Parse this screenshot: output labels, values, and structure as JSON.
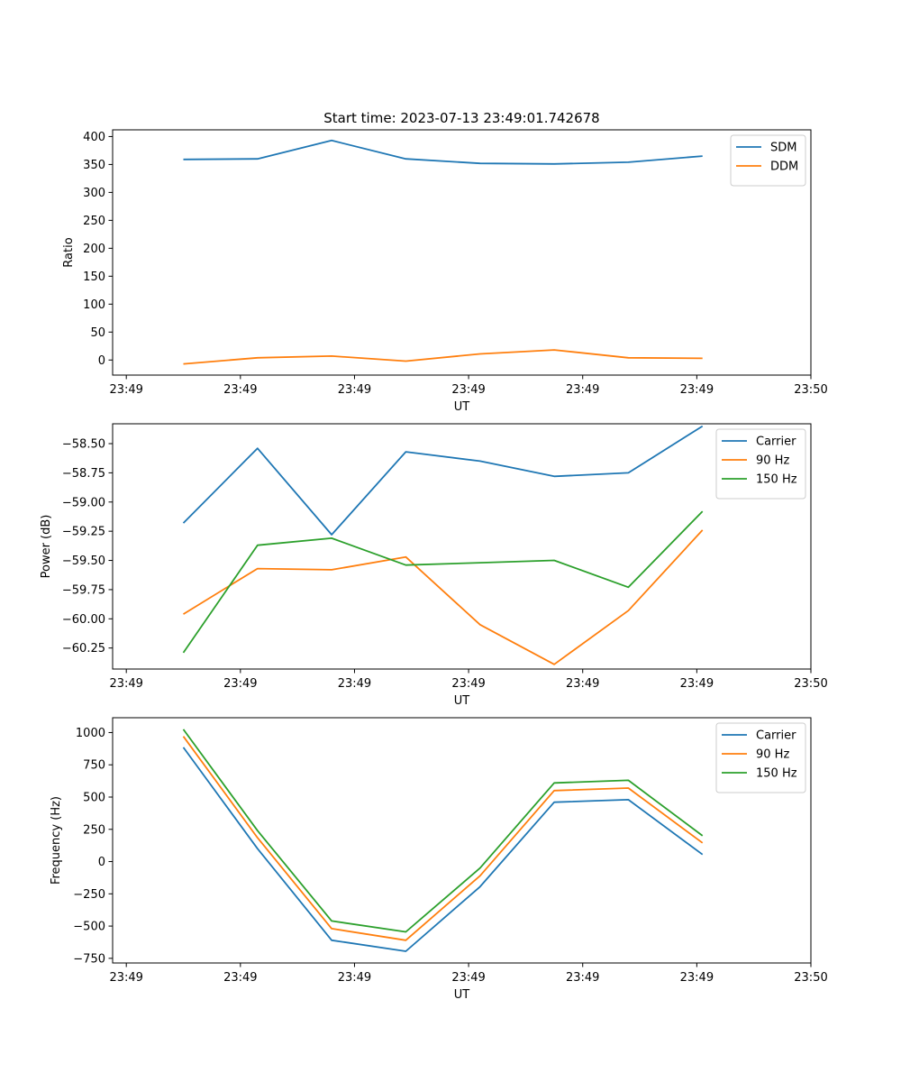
{
  "figure_title": "Start time: 2023-07-13 23:49:01.742678",
  "chart_data": [
    {
      "type": "line",
      "title": "Start time: 2023-07-13 23:49:01.742678",
      "xlabel": "UT",
      "ylabel": "Ratio",
      "x_ticks": [
        "23:49",
        "23:49",
        "23:49",
        "23:49",
        "23:49",
        "23:49",
        "23:50"
      ],
      "x_tick_values": [
        0,
        1,
        2,
        3,
        4,
        5,
        6
      ],
      "xlim": [
        -0.12,
        6.0
      ],
      "x": [
        0.5,
        1.15,
        1.8,
        2.45,
        3.1,
        3.75,
        4.4,
        5.05
      ],
      "y_ticks": [
        0,
        50,
        100,
        150,
        200,
        250,
        300,
        350,
        400
      ],
      "ylim": [
        -27,
        412
      ],
      "legend_position": "upper right",
      "series": [
        {
          "name": "SDM",
          "color": "#1f77b4",
          "values": [
            359,
            360,
            393,
            360,
            352,
            351,
            354,
            365
          ]
        },
        {
          "name": "DDM",
          "color": "#ff7f0e",
          "values": [
            -7,
            4,
            7,
            -2,
            11,
            18,
            4,
            3
          ]
        }
      ]
    },
    {
      "type": "line",
      "title": "",
      "xlabel": "UT",
      "ylabel": "Power (dB)",
      "x_ticks": [
        "23:49",
        "23:49",
        "23:49",
        "23:49",
        "23:49",
        "23:49",
        "23:50"
      ],
      "x_tick_values": [
        0,
        1,
        2,
        3,
        4,
        5,
        6
      ],
      "xlim": [
        -0.12,
        6.0
      ],
      "x": [
        0.5,
        1.15,
        1.8,
        2.45,
        3.1,
        3.75,
        4.4,
        5.05
      ],
      "y_ticks": [
        -60.25,
        -60.0,
        -59.75,
        -59.5,
        -59.25,
        -59.0,
        -58.75,
        -58.5
      ],
      "y_tick_labels": [
        "−60.25",
        "−60.00",
        "−59.75",
        "−59.50",
        "−59.25",
        "−59.00",
        "−58.75",
        "−58.50"
      ],
      "ylim": [
        -60.43,
        -58.33
      ],
      "legend_position": "upper right",
      "series": [
        {
          "name": "Carrier",
          "color": "#1f77b4",
          "values": [
            -59.18,
            -58.54,
            -59.28,
            -58.57,
            -58.65,
            -58.78,
            -58.75,
            -58.35
          ]
        },
        {
          "name": "90 Hz",
          "color": "#ff7f0e",
          "values": [
            -59.96,
            -59.57,
            -59.58,
            -59.47,
            -60.05,
            -60.39,
            -59.93,
            -59.24
          ]
        },
        {
          "name": "150 Hz",
          "color": "#2ca02c",
          "values": [
            -60.29,
            -59.37,
            -59.31,
            -59.54,
            -59.52,
            -59.5,
            -59.73,
            -59.08
          ]
        }
      ]
    },
    {
      "type": "line",
      "title": "",
      "xlabel": "UT",
      "ylabel": "Frequency (Hz)",
      "x_ticks": [
        "23:49",
        "23:49",
        "23:49",
        "23:49",
        "23:49",
        "23:49",
        "23:50"
      ],
      "x_tick_values": [
        0,
        1,
        2,
        3,
        4,
        5,
        6
      ],
      "xlim": [
        -0.12,
        6.0
      ],
      "x": [
        0.5,
        1.15,
        1.8,
        2.45,
        3.1,
        3.75,
        4.4,
        5.05
      ],
      "y_ticks": [
        -750,
        -500,
        -250,
        0,
        250,
        500,
        750,
        1000
      ],
      "y_tick_labels": [
        "−750",
        "−500",
        "−250",
        "0",
        "250",
        "500",
        "750",
        "1000"
      ],
      "ylim": [
        -786,
        1115
      ],
      "legend_position": "upper right",
      "series": [
        {
          "name": "Carrier",
          "color": "#1f77b4",
          "values": [
            885,
            100,
            -610,
            -695,
            -195,
            460,
            480,
            55
          ]
        },
        {
          "name": "90 Hz",
          "color": "#ff7f0e",
          "values": [
            970,
            185,
            -520,
            -610,
            -110,
            550,
            570,
            145
          ]
        },
        {
          "name": "150 Hz",
          "color": "#2ca02c",
          "values": [
            1025,
            240,
            -460,
            -545,
            -50,
            610,
            630,
            200
          ]
        }
      ]
    }
  ]
}
